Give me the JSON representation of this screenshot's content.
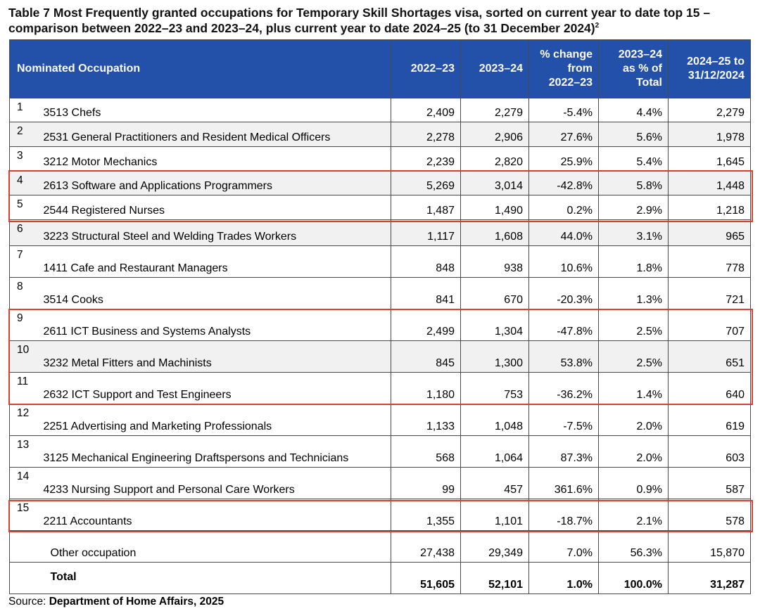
{
  "title": {
    "text": "Table 7 Most Frequently granted occupations for Temporary Skill Shortages visa, sorted on current year to date top 15 – comparison between 2022–23 and 2023–24, plus current year to date 2024–25 (to 31 December 2024)",
    "footnote_mark": "2"
  },
  "columns": {
    "occupation": "Nominated Occupation",
    "y2022": "2022–23",
    "y2023": "2023–24",
    "pct_change": "% change from 2022–23",
    "pct_total": "2023–24 as % of Total",
    "ytd": "2024–25 to 31/12/2024"
  },
  "rows": [
    {
      "rank": "1",
      "occupation": "3513 Chefs",
      "y2022": "2,409",
      "y2023": "2,279",
      "pct_change": "-5.4%",
      "pct_total": "4.4%",
      "ytd": "2,279"
    },
    {
      "rank": "2",
      "occupation": "2531 General Practitioners and Resident Medical Officers",
      "y2022": "2,278",
      "y2023": "2,906",
      "pct_change": "27.6%",
      "pct_total": "5.6%",
      "ytd": "1,978"
    },
    {
      "rank": "3",
      "occupation": "3212 Motor Mechanics",
      "y2022": "2,239",
      "y2023": "2,820",
      "pct_change": "25.9%",
      "pct_total": "5.4%",
      "ytd": "1,645"
    },
    {
      "rank": "4",
      "occupation": "2613 Software and Applications Programmers",
      "y2022": "5,269",
      "y2023": "3,014",
      "pct_change": "-42.8%",
      "pct_total": "5.8%",
      "ytd": "1,448"
    },
    {
      "rank": "5",
      "occupation": "2544 Registered Nurses",
      "y2022": "1,487",
      "y2023": "1,490",
      "pct_change": "0.2%",
      "pct_total": "2.9%",
      "ytd": "1,218"
    },
    {
      "rank": "6",
      "occupation": "3223 Structural Steel and Welding Trades Workers",
      "y2022": "1,117",
      "y2023": "1,608",
      "pct_change": "44.0%",
      "pct_total": "3.1%",
      "ytd": "965"
    },
    {
      "rank": "7",
      "occupation": "1411 Cafe and Restaurant Managers",
      "y2022": "848",
      "y2023": "938",
      "pct_change": "10.6%",
      "pct_total": "1.8%",
      "ytd": "778"
    },
    {
      "rank": "8",
      "occupation": "3514 Cooks",
      "y2022": "841",
      "y2023": "670",
      "pct_change": "-20.3%",
      "pct_total": "1.3%",
      "ytd": "721"
    },
    {
      "rank": "9",
      "occupation": "2611 ICT Business and Systems Analysts",
      "y2022": "2,499",
      "y2023": "1,304",
      "pct_change": "-47.8%",
      "pct_total": "2.5%",
      "ytd": "707"
    },
    {
      "rank": "10",
      "occupation": "3232 Metal Fitters and Machinists",
      "y2022": "845",
      "y2023": "1,300",
      "pct_change": "53.8%",
      "pct_total": "2.5%",
      "ytd": "651"
    },
    {
      "rank": "11",
      "occupation": "2632 ICT Support and Test Engineers",
      "y2022": "1,180",
      "y2023": "753",
      "pct_change": "-36.2%",
      "pct_total": "1.4%",
      "ytd": "640"
    },
    {
      "rank": "12",
      "occupation": "2251 Advertising and Marketing Professionals",
      "y2022": "1,133",
      "y2023": "1,048",
      "pct_change": "-7.5%",
      "pct_total": "2.0%",
      "ytd": "619"
    },
    {
      "rank": "13",
      "occupation": "3125 Mechanical Engineering Draftspersons and Technicians",
      "y2022": "568",
      "y2023": "1,064",
      "pct_change": "87.3%",
      "pct_total": "2.0%",
      "ytd": "603"
    },
    {
      "rank": "14",
      "occupation": "4233 Nursing Support and Personal Care Workers",
      "y2022": "99",
      "y2023": "457",
      "pct_change": "361.6%",
      "pct_total": "0.9%",
      "ytd": "587"
    },
    {
      "rank": "15",
      "occupation": "2211 Accountants",
      "y2022": "1,355",
      "y2023": "1,101",
      "pct_change": "-18.7%",
      "pct_total": "2.1%",
      "ytd": "578"
    }
  ],
  "other": {
    "label": "Other occupation",
    "y2022": "27,438",
    "y2023": "29,349",
    "pct_change": "7.0%",
    "pct_total": "56.3%",
    "ytd": "15,870"
  },
  "total": {
    "label": "Total",
    "y2022": "51,605",
    "y2023": "52,101",
    "pct_change": "1.0%",
    "pct_total": "100.0%",
    "ytd": "31,287"
  },
  "source": {
    "prefix": "Source:",
    "text": "Department of Home Affairs, 2025"
  },
  "colors": {
    "header_bg": "#2350a8",
    "highlight": "#d6402d"
  }
}
